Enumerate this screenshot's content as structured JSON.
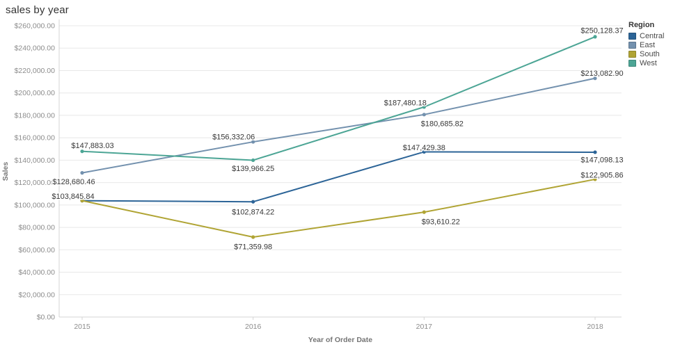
{
  "title": "sales by year",
  "chart_data": {
    "type": "line",
    "title": "sales by year",
    "x": [
      "2015",
      "2016",
      "2017",
      "2018"
    ],
    "xlabel": "Year of Order Date",
    "ylabel": "Sales",
    "ylim": [
      0,
      260000
    ],
    "ytick_step": 20000,
    "ytick_format": "$#,##0.00",
    "grid": true,
    "legend_title": "Region",
    "legend_position": "top-right",
    "series": [
      {
        "name": "Central",
        "color": "#2c6497",
        "values": [
          103845.84,
          102874.22,
          147429.38,
          147098.13
        ],
        "point_labels": [
          "",
          "$102,874.22",
          "$147,429.38",
          "$147,098.13"
        ]
      },
      {
        "name": "East",
        "color": "#7391ae",
        "values": [
          128680.46,
          156332.06,
          180685.82,
          213082.9
        ],
        "point_labels": [
          "$128,680.46",
          "$156,332.06",
          "$180,685.82",
          "$213,082.90"
        ]
      },
      {
        "name": "South",
        "color": "#b0a434",
        "values": [
          103845.84,
          71359.98,
          93610.22,
          122905.86
        ],
        "point_labels": [
          "$103,845.84",
          "$71,359.98",
          "$93,610.22",
          "$122,905.86"
        ]
      },
      {
        "name": "West",
        "color": "#4ca595",
        "values": [
          147883.03,
          139966.25,
          187480.18,
          250128.37
        ],
        "point_labels": [
          "$147,883.03",
          "$139,966.25",
          "$187,480.18",
          "$250,128.37"
        ]
      }
    ]
  },
  "colors": {
    "grid_line": "#e8e8e8",
    "axis_line": "#d4d4d4",
    "tick_text": "#8c8c8c",
    "axis_title_text": "#757575",
    "data_label_text": "#373737"
  }
}
